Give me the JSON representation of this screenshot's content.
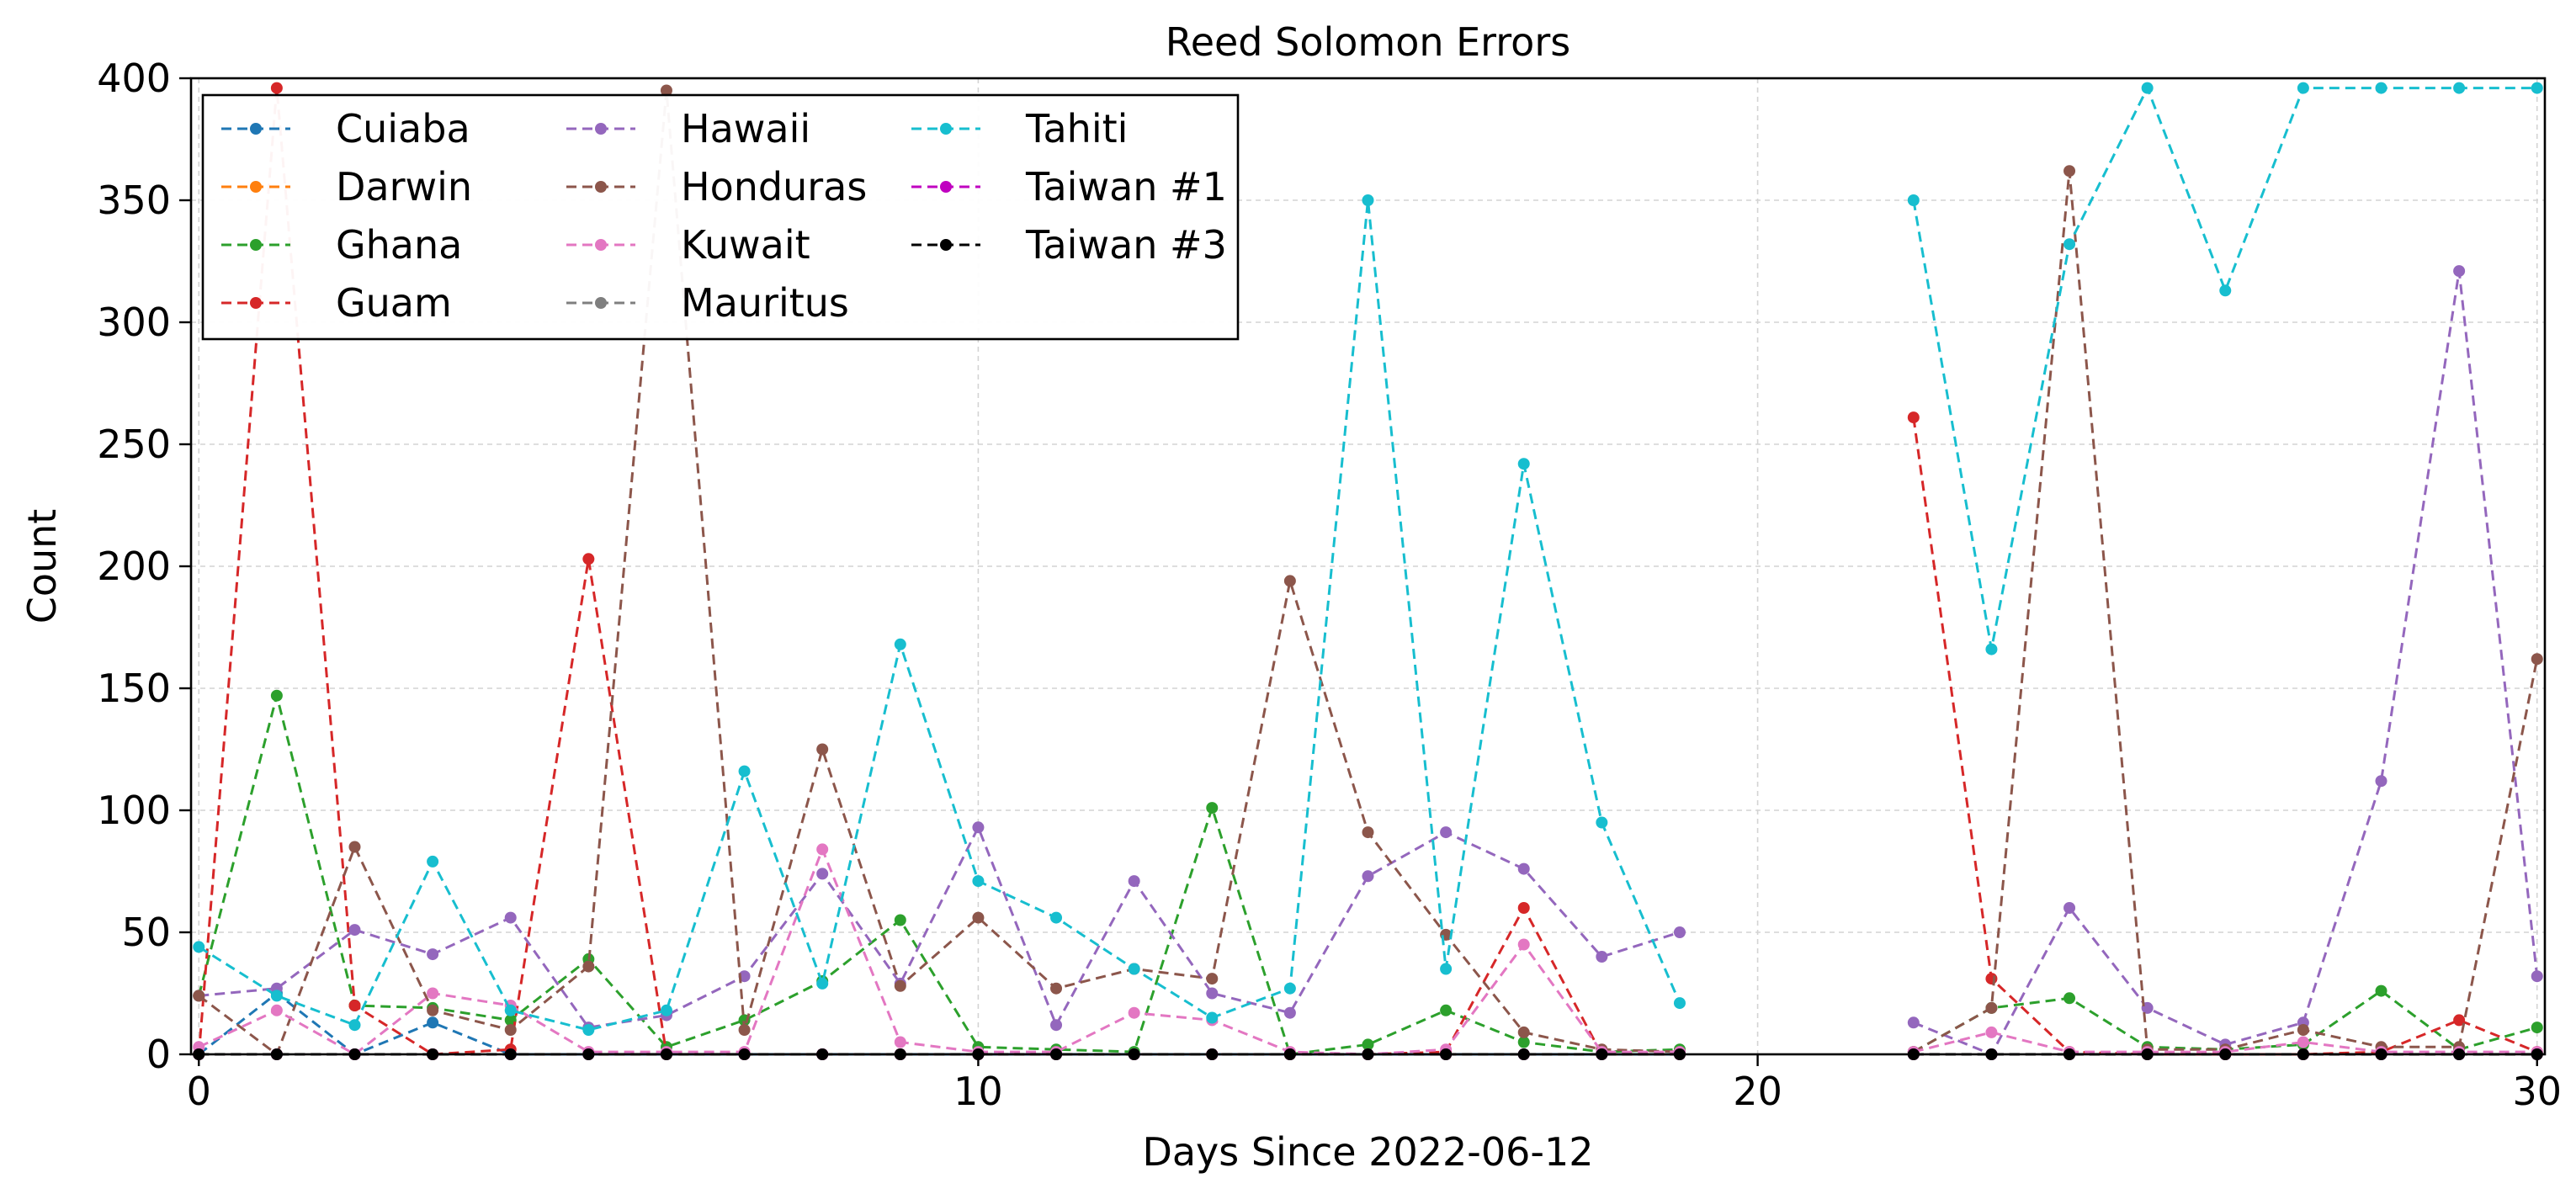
{
  "chart_data": {
    "type": "line",
    "title": "Reed Solomon Errors",
    "xlabel": "Days Since 2022-06-12",
    "ylabel": "Count",
    "xlim": [
      -0.1,
      30.1
    ],
    "ylim": [
      0,
      400
    ],
    "xticks": [
      0,
      10,
      20,
      30
    ],
    "yticks": [
      0,
      50,
      100,
      150,
      200,
      250,
      300,
      350,
      400
    ],
    "grid": true,
    "legend_position": "top-left",
    "x": [
      0,
      1,
      2,
      3,
      4,
      5,
      6,
      7,
      8,
      9,
      10,
      11,
      12,
      13,
      14,
      15,
      16,
      17,
      18,
      19,
      22,
      23,
      24,
      25,
      26,
      27,
      28,
      29,
      30
    ],
    "series": [
      {
        "name": "Cuiaba",
        "color": "#1f77b4",
        "values": [
          0,
          25,
          0,
          13,
          0,
          0,
          0,
          0,
          0,
          0,
          0,
          0,
          0,
          0,
          0,
          0,
          0,
          0,
          0,
          0,
          0,
          0,
          0,
          0,
          0,
          0,
          0,
          0,
          0
        ]
      },
      {
        "name": "Darwin",
        "color": "#ff7f0e",
        "values": [
          0,
          0,
          0,
          0,
          0,
          0,
          0,
          0,
          0,
          0,
          0,
          0,
          0,
          0,
          0,
          0,
          0,
          0,
          0,
          0,
          0,
          0,
          0,
          0,
          0,
          0,
          0,
          0,
          0
        ]
      },
      {
        "name": "Ghana",
        "color": "#2ca02c",
        "values": [
          24,
          147,
          20,
          19,
          14,
          39,
          3,
          14,
          30,
          55,
          3,
          2,
          1,
          101,
          0,
          4,
          18,
          5,
          1,
          2,
          1,
          19,
          23,
          3,
          2,
          4,
          26,
          2,
          11
        ]
      },
      {
        "name": "Guam",
        "color": "#d62728",
        "values": [
          0,
          396,
          20,
          0,
          2,
          203,
          0,
          0,
          0,
          0,
          0,
          0,
          0,
          0,
          0,
          0,
          1,
          60,
          0,
          0,
          261,
          31,
          1,
          0,
          0,
          0,
          1,
          14,
          1
        ]
      },
      {
        "name": "Hawaii",
        "color": "#9467bd",
        "values": [
          24,
          27,
          51,
          41,
          56,
          11,
          16,
          32,
          74,
          29,
          93,
          12,
          71,
          25,
          17,
          73,
          91,
          76,
          40,
          50,
          13,
          0,
          60,
          19,
          4,
          13,
          112,
          321,
          32
        ]
      },
      {
        "name": "Honduras",
        "color": "#8c564b",
        "values": [
          24,
          0,
          85,
          18,
          10,
          36,
          395,
          10,
          125,
          28,
          56,
          27,
          35,
          31,
          194,
          91,
          49,
          9,
          2,
          1,
          1,
          19,
          362,
          2,
          2,
          10,
          3,
          3,
          162
        ]
      },
      {
        "name": "Kuwait",
        "color": "#e377c2",
        "values": [
          3,
          18,
          0,
          25,
          20,
          1,
          1,
          1,
          84,
          5,
          1,
          1,
          17,
          14,
          1,
          0,
          2,
          45,
          1,
          1,
          1,
          9,
          1,
          1,
          1,
          5,
          1,
          1,
          1
        ]
      },
      {
        "name": "Mauritus",
        "color": "#7f7f7f",
        "values": [
          0,
          0,
          0,
          0,
          0,
          0,
          0,
          0,
          0,
          0,
          0,
          0,
          0,
          0,
          0,
          0,
          0,
          0,
          0,
          0,
          0,
          0,
          0,
          0,
          0,
          0,
          0,
          0,
          0
        ]
      },
      {
        "name": "Tahiti",
        "color": "#17becf",
        "values": [
          44,
          24,
          12,
          79,
          18,
          10,
          18,
          116,
          29,
          168,
          71,
          56,
          35,
          15,
          27,
          350,
          35,
          242,
          95,
          21,
          350,
          166,
          332,
          396,
          313,
          396,
          396,
          396,
          396
        ]
      },
      {
        "name": "Taiwan #1",
        "color": "#c000c0",
        "values": [
          0,
          0,
          0,
          0,
          0,
          0,
          0,
          0,
          0,
          0,
          0,
          0,
          0,
          0,
          0,
          0,
          0,
          0,
          0,
          0,
          0,
          0,
          0,
          0,
          0,
          0,
          0,
          0,
          0
        ]
      },
      {
        "name": "Taiwan #3",
        "color": "#000000",
        "values": [
          0,
          0,
          0,
          0,
          0,
          0,
          0,
          0,
          0,
          0,
          0,
          0,
          0,
          0,
          0,
          0,
          0,
          0,
          0,
          0,
          0,
          0,
          0,
          0,
          0,
          0,
          0,
          0,
          0
        ]
      }
    ]
  }
}
